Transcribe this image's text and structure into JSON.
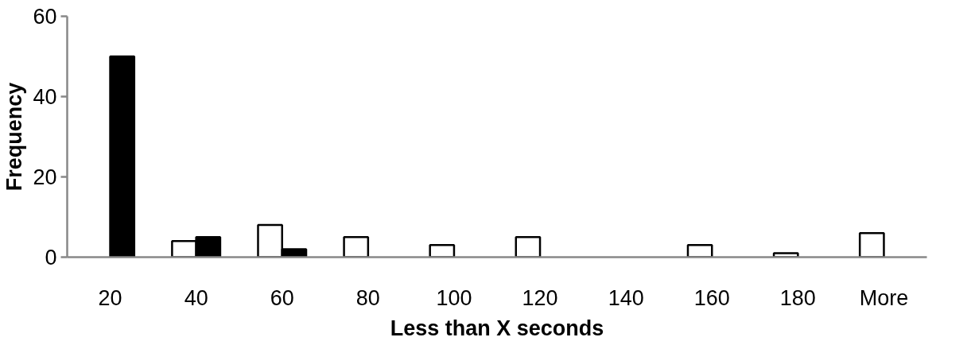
{
  "chart_data": {
    "type": "bar",
    "xlabel": "Less than X seconds",
    "ylabel": "Frequency",
    "categories": [
      "20",
      "40",
      "60",
      "80",
      "100",
      "120",
      "140",
      "160",
      "180",
      "More"
    ],
    "series": [
      {
        "color": "#ffffff",
        "values": [
          0,
          4,
          8,
          5,
          3,
          5,
          0,
          3,
          1,
          6
        ]
      },
      {
        "color": "#000000",
        "values": [
          50,
          5,
          2,
          0,
          0,
          0,
          0,
          0,
          0,
          0
        ]
      }
    ],
    "ylim": [
      0,
      60
    ],
    "yticks": [
      0,
      20,
      40,
      60
    ],
    "grid": false
  }
}
